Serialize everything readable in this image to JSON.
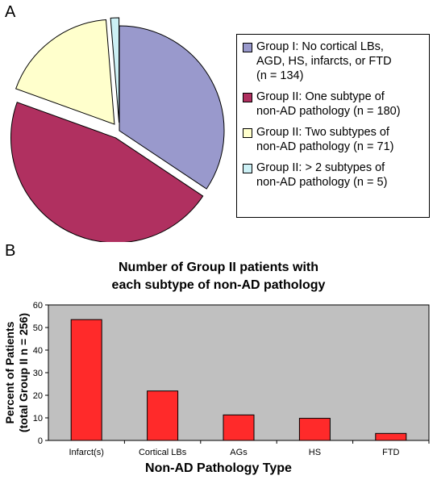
{
  "panel_a_label": "A",
  "panel_b_label": "B",
  "chart_data": [
    {
      "type": "pie",
      "slices": [
        {
          "label": "Group I: No cortical LBs,\nAGD, HS, infarcts, or FTD\n(n = 134)",
          "value": 134,
          "color": "#9999cc",
          "exploded": false
        },
        {
          "label": "Group II: One subtype of\nnon-AD pathology (n =  180)",
          "value": 180,
          "color": "#b03060",
          "exploded": true
        },
        {
          "label": "Group II: Two subtypes of\nnon-AD pathology (n = 71)",
          "value": 71,
          "color": "#ffffcc",
          "exploded": true
        },
        {
          "label": "Group II: > 2 subtypes of\nnon-AD pathology (n =  5)",
          "value": 5,
          "color": "#ccf0f5",
          "exploded": true
        }
      ]
    },
    {
      "type": "bar",
      "title": "Number of Group II patients with\neach subtype of non-AD pathology",
      "categories": [
        "Infarct(s)",
        "Cortical LBs",
        "AGs",
        "HS",
        "FTD"
      ],
      "values": [
        53.5,
        21.9,
        11.3,
        9.8,
        3.1
      ],
      "ylabel_line1": "Percent of Patients",
      "ylabel_line2": "(total Group II n = 256)",
      "xlabel": "Non-AD Pathology Type",
      "ylim": [
        0,
        60
      ],
      "yticks": [
        "0",
        "10",
        "20",
        "30",
        "40",
        "50",
        "60"
      ],
      "bar_color": "#ff2a2a",
      "plot_background": "#c0c0c0"
    }
  ]
}
